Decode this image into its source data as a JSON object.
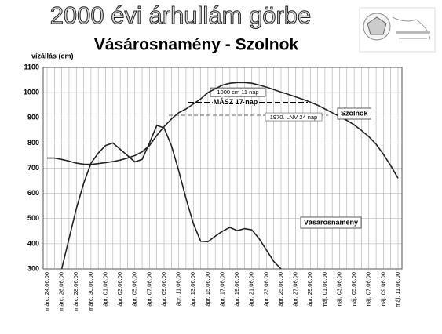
{
  "chart_data": {
    "type": "line",
    "title": "2000 évi árhullám görbe",
    "subtitle": "Vásárosnamény -  Szolnok",
    "y_label": "vízállás (cm)",
    "ylim": [
      300,
      1100
    ],
    "yticks": [
      300,
      400,
      500,
      600,
      700,
      800,
      900,
      1000,
      1100
    ],
    "grid": true,
    "categories": [
      "márc. 24.06.00",
      null,
      "márc. 26.06.00",
      null,
      "márc. 28.06.00",
      null,
      "márc. 30.06.00",
      null,
      "ápr. 01.06.00",
      null,
      "ápr. 03.06.00",
      null,
      "ápr. 05.06.00",
      null,
      "ápr. 07.06.00",
      null,
      "ápr. 09.06.00",
      null,
      "ápr. 11.06.00",
      null,
      "ápr. 13.06.00",
      null,
      "ápr. 15.06.00",
      null,
      "ápr. 17.06.00",
      null,
      "ápr. 19.06.00",
      null,
      "ápr. 21.06.00",
      null,
      "ápr. 23.06.00",
      null,
      "ápr. 25.06.00",
      null,
      "ápr. 27.06.00",
      null,
      "ápr. 29.06.00",
      null,
      "máj. 01.06.00",
      null,
      "máj. 03.06.00",
      null,
      "máj. 05.06.00",
      null,
      "máj. 07.06.00",
      null,
      "máj. 09.06.00",
      null,
      "máj. 11.06.00"
    ],
    "series": [
      {
        "name": "Szolnok",
        "color": "#222222",
        "values": [
          740,
          740,
          735,
          728,
          720,
          716,
          715,
          718,
          722,
          726,
          732,
          740,
          750,
          765,
          790,
          830,
          865,
          895,
          920,
          935,
          955,
          975,
          1000,
          1015,
          1030,
          1037,
          1040,
          1040,
          1037,
          1030,
          1022,
          1012,
          1002,
          993,
          983,
          973,
          962,
          950,
          935,
          920,
          905,
          890,
          872,
          850,
          825,
          795,
          755,
          710,
          660
        ]
      },
      {
        "name": "Vásárosnamény",
        "color": "#222222",
        "values": [
          null,
          null,
          300,
          420,
          540,
          640,
          720,
          760,
          790,
          800,
          775,
          750,
          725,
          735,
          800,
          870,
          860,
          790,
          690,
          580,
          480,
          410,
          408,
          430,
          450,
          465,
          452,
          460,
          455,
          420,
          375,
          330,
          300,
          null,
          null,
          null,
          null,
          null,
          null,
          null,
          null,
          null,
          null,
          null,
          null,
          null,
          null,
          null,
          null
        ]
      }
    ],
    "annotations": [
      {
        "text": "1000 cm 11 nap",
        "value": 1000,
        "line_style": "solid"
      },
      {
        "text": "MÁSZ   17 nap",
        "value": 960,
        "line_style": "thick-dashed"
      },
      {
        "text": "1970. LNV 24 nap",
        "value": 910,
        "line_style": "dashed"
      }
    ]
  }
}
